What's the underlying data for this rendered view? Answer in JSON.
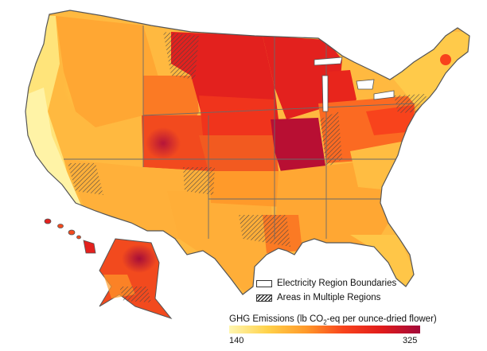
{
  "legend": {
    "boundary_label": "Electricity Region Boundaries",
    "multiple_label": "Areas in Multiple Regions"
  },
  "colorbar": {
    "title_prefix": "GHG Emissions (lb CO",
    "title_sub": "2",
    "title_suffix": "-eq per ounce-dried flower)",
    "min_label": "140",
    "max_label": "325",
    "min_value": 140,
    "max_value": 325,
    "stops": [
      "#fff6b0",
      "#ffd24a",
      "#ff9a2a",
      "#f8431c",
      "#e01b1b",
      "#a30a3a"
    ]
  },
  "colors": {
    "very_low": "#fff3a6",
    "low": "#ffd45a",
    "mid": "#ffa733",
    "mid_high": "#fb7a24",
    "high": "#f24a1e",
    "very_high": "#e3211e",
    "max": "#b80f33",
    "border": "#555555"
  }
}
